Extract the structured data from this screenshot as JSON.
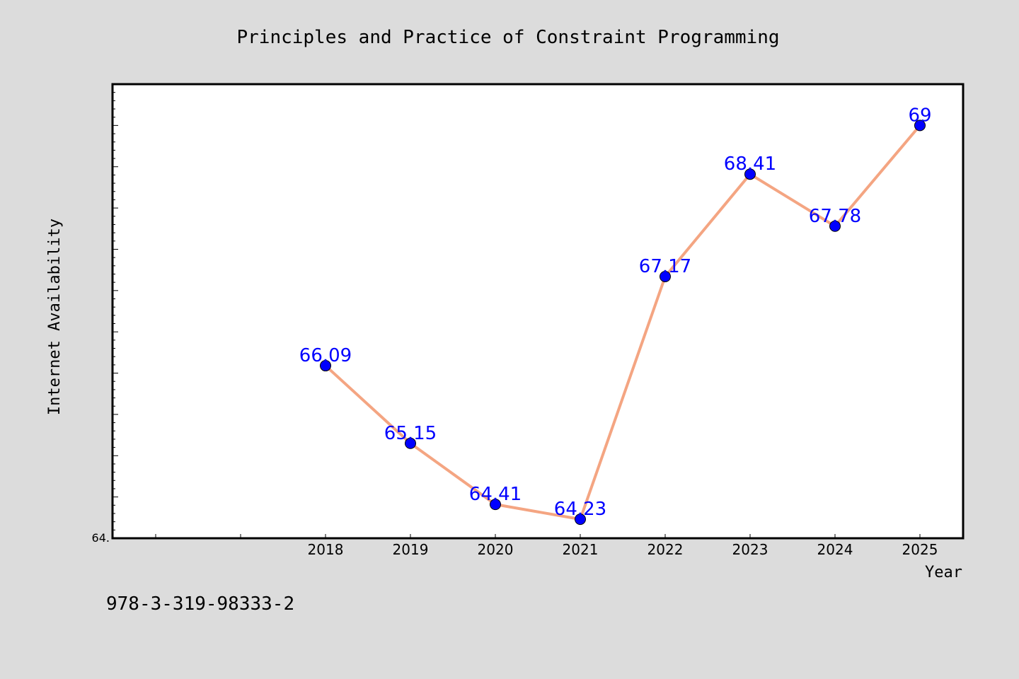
{
  "chart_data": {
    "type": "line",
    "title": "Principles and Practice of Constraint Programming",
    "xlabel": "Year",
    "ylabel": "Internet Availability",
    "x": [
      "2018",
      "2019",
      "2020",
      "2021",
      "2022",
      "2023",
      "2024",
      "2025"
    ],
    "series": [
      {
        "values": [
          66.09,
          65.15,
          64.41,
          64.23,
          67.17,
          68.41,
          67.78,
          69
        ],
        "labels": [
          "66.09",
          "65.15",
          "64.41",
          "64.23",
          "67.17",
          "68.41",
          "67.78",
          "69"
        ]
      }
    ],
    "y_tick_labels": [
      {
        "value": 64.0,
        "label": "64."
      }
    ],
    "ylim": [
      64.0,
      69.5
    ],
    "grid": false,
    "line_color": "#f4a582",
    "marker_color": "#0000ff",
    "label_color": "#0000ff"
  },
  "footer": {
    "text": "978-3-319-98333-2"
  }
}
